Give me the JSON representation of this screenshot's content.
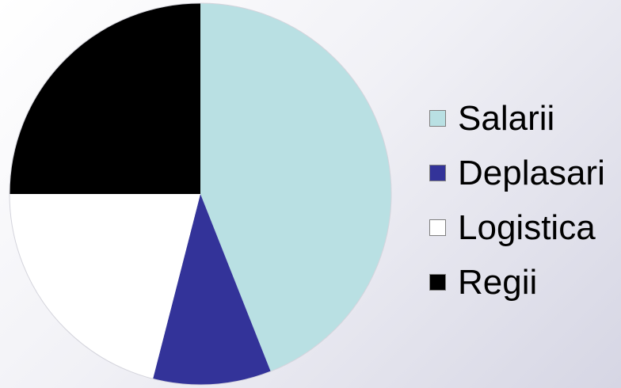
{
  "chart_data": {
    "type": "pie",
    "categories": [
      "Salarii",
      "Deplasari",
      "Logistica",
      "Regii"
    ],
    "values": [
      44,
      10,
      21,
      25
    ],
    "colors": [
      "#b9e0e3",
      "#333399",
      "#ffffff",
      "#000000"
    ],
    "start_angle_deg": 0,
    "direction": "clockwise",
    "legend_position": "right",
    "title": ""
  }
}
